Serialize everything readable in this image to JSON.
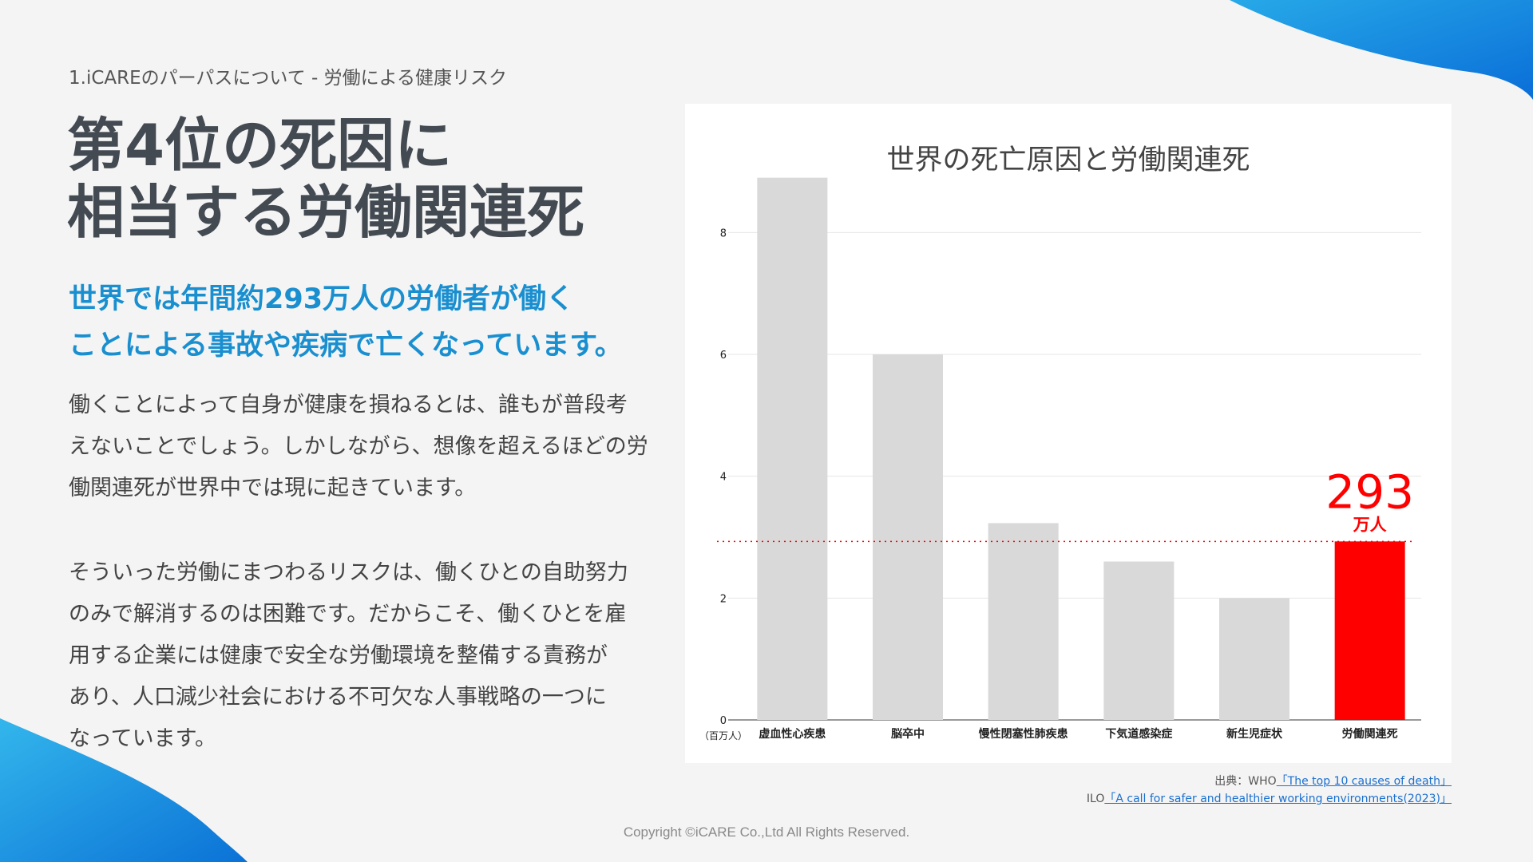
{
  "page": {
    "breadcrumb": "1.iCAREのパーパスについて - 労働による健康リスク",
    "title_lines": [
      "第4位の死因に",
      "相当する労働関連死"
    ],
    "lead_lines": [
      "世界では年間約293万人の労働者が働く",
      "ことによる事故や疾病で亡くなっています。"
    ],
    "paragraph1_lines": [
      "働くことによって自身が健康を損ねるとは、誰もが普段考",
      "えないことでしょう。しかしながら、想像を超えるほどの労",
      "働関連死が世界中では現に起きています。"
    ],
    "paragraph2_lines": [
      "そういった労働にまつわるリスクは、働くひとの自助努力",
      "のみで解消するのは困難です。だからこそ、働くひとを雇",
      "用する企業には健康で安全な労働環境を整備する責務が",
      "あり、人口減少社会における不可欠な人事戦略の一つに",
      "なっています。"
    ],
    "source": {
      "prefix1": "出典：WHO",
      "link1": "「The top 10 causes of death」",
      "prefix2": "ILO",
      "link2": "「A call for safer and healthier working environments(2023)」"
    },
    "copyright": "Copyright ©iCARE Co.,Ltd All Rights Reserved."
  },
  "colors": {
    "accent_blue": "#1a8fd0",
    "bar_default": "#d9d9d9",
    "bar_highlight": "#ff0000",
    "title_gray": "#434a52"
  },
  "chart_data": {
    "type": "bar",
    "title": "世界の死亡原因と労働関連死",
    "unit_label": "（百万人）",
    "categories": [
      "虚血性心疾患",
      "脳卒中",
      "慢性閉塞性肺疾患",
      "下気道感染症",
      "新生児症状",
      "労働関連死"
    ],
    "values": [
      8.9,
      6.0,
      3.23,
      2.6,
      2.0,
      2.93
    ],
    "highlight_index": 5,
    "highlight_label_value": "293",
    "highlight_label_unit": "万人",
    "reference_line_value": 2.93,
    "yticks": [
      0,
      2,
      4,
      6,
      8
    ],
    "ylim": [
      0,
      9
    ],
    "grid": true
  }
}
